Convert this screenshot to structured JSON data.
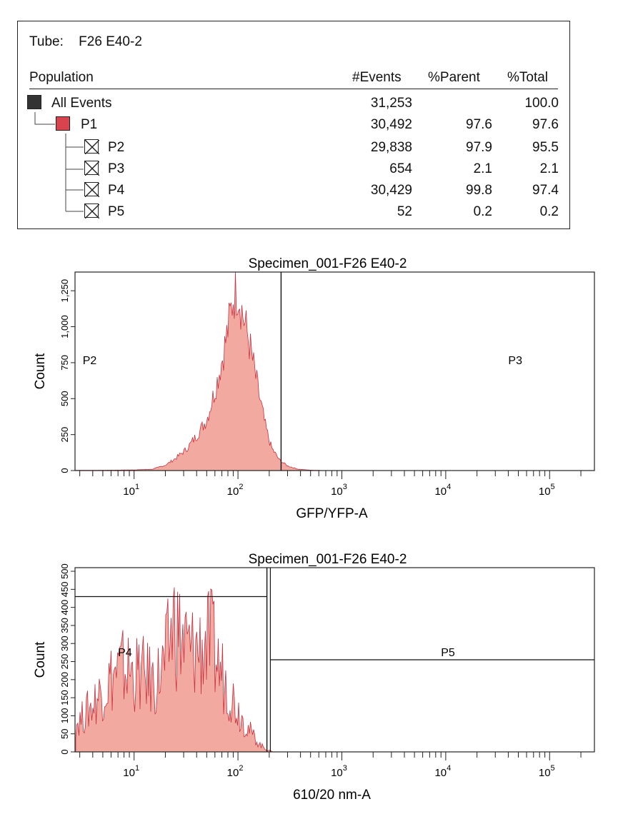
{
  "tube": {
    "label": "Tube:",
    "name": "F26 E40-2"
  },
  "table": {
    "headers": {
      "population": "Population",
      "events": "#Events",
      "parent": "%Parent",
      "total": "%Total"
    },
    "rows": [
      {
        "name": "All Events",
        "events": "31,253",
        "parent": "",
        "total": "100.0",
        "swatch": "black",
        "level": 0
      },
      {
        "name": "P1",
        "events": "30,492",
        "parent": "97.6",
        "total": "97.6",
        "swatch": "red",
        "level": 1
      },
      {
        "name": "P2",
        "events": "29,838",
        "parent": "97.9",
        "total": "95.5",
        "swatch": "x",
        "level": 2
      },
      {
        "name": "P3",
        "events": "654",
        "parent": "2.1",
        "total": "2.1",
        "swatch": "x",
        "level": 2
      },
      {
        "name": "P4",
        "events": "30,429",
        "parent": "99.8",
        "total": "97.4",
        "swatch": "x",
        "level": 2
      },
      {
        "name": "P5",
        "events": "52",
        "parent": "0.2",
        "total": "0.2",
        "swatch": "x",
        "level": 2
      }
    ]
  },
  "colors": {
    "fill": "#f2aaa0",
    "stroke": "#c8303f",
    "swatch_red": "#d9434e"
  },
  "chart_data": [
    {
      "type": "area",
      "title": "Specimen_001-F26 E40-2",
      "xlabel": "GFP/YFP-A",
      "ylabel": "Count",
      "x_scale": "log",
      "xlim": [
        2.7,
        270000
      ],
      "ylim": [
        0,
        1380
      ],
      "y_ticks": [
        "0",
        "250",
        "500",
        "750",
        "1,000",
        "1,250"
      ],
      "y_tick_values": [
        0,
        250,
        500,
        750,
        1000,
        1250
      ],
      "x_ticks": [
        {
          "base": "10",
          "exp": "1",
          "value": 10
        },
        {
          "base": "10",
          "exp": "2",
          "value": 100
        },
        {
          "base": "10",
          "exp": "3",
          "value": 1000
        },
        {
          "base": "10",
          "exp": "4",
          "value": 10000
        },
        {
          "base": "10",
          "exp": "5",
          "value": 100000
        }
      ],
      "gates": [
        {
          "name": "P2",
          "range": [
            2.7,
            260
          ],
          "label_x": 3.2,
          "label_y": 740
        },
        {
          "name": "P3",
          "range": [
            260,
            270000
          ],
          "label_x": 40000,
          "label_y": 740
        }
      ],
      "gate_divider_x": 260,
      "peaks": [
        {
          "x": 10,
          "y": 5
        },
        {
          "x": 15,
          "y": 10
        },
        {
          "x": 20,
          "y": 40
        },
        {
          "x": 25,
          "y": 90
        },
        {
          "x": 32,
          "y": 160
        },
        {
          "x": 40,
          "y": 260
        },
        {
          "x": 50,
          "y": 380
        },
        {
          "x": 60,
          "y": 600
        },
        {
          "x": 70,
          "y": 820
        },
        {
          "x": 80,
          "y": 1050
        },
        {
          "x": 90,
          "y": 1300
        },
        {
          "x": 100,
          "y": 1360
        },
        {
          "x": 110,
          "y": 1180
        },
        {
          "x": 125,
          "y": 1000
        },
        {
          "x": 140,
          "y": 800
        },
        {
          "x": 160,
          "y": 560
        },
        {
          "x": 185,
          "y": 320
        },
        {
          "x": 210,
          "y": 170
        },
        {
          "x": 250,
          "y": 80
        },
        {
          "x": 300,
          "y": 35
        },
        {
          "x": 380,
          "y": 10
        },
        {
          "x": 500,
          "y": 3
        },
        {
          "x": 700,
          "y": 0
        }
      ]
    },
    {
      "type": "area",
      "title": "Specimen_001-F26 E40-2",
      "xlabel": "610/20 nm-A",
      "ylabel": "Count",
      "x_scale": "log",
      "xlim": [
        2.7,
        270000
      ],
      "ylim": [
        0,
        510
      ],
      "y_ticks": [
        "0",
        "50",
        "100",
        "150",
        "200",
        "250",
        "300",
        "350",
        "400",
        "450",
        "500"
      ],
      "y_tick_values": [
        0,
        50,
        100,
        150,
        200,
        250,
        300,
        350,
        400,
        450,
        500
      ],
      "x_ticks": [
        {
          "base": "10",
          "exp": "1",
          "value": 10
        },
        {
          "base": "10",
          "exp": "2",
          "value": 100
        },
        {
          "base": "10",
          "exp": "3",
          "value": 1000
        },
        {
          "base": "10",
          "exp": "4",
          "value": 10000
        },
        {
          "base": "10",
          "exp": "5",
          "value": 100000
        }
      ],
      "gates": [
        {
          "name": "P4",
          "range": [
            2.7,
            190
          ],
          "level": 430,
          "label_x": 7,
          "label_y": 265
        },
        {
          "name": "P5",
          "range": [
            205,
            270000
          ],
          "level": 255,
          "label_x": 9000,
          "label_y": 265
        }
      ],
      "gate_divider_x": 190,
      "peaks": [
        {
          "x": 3,
          "y": 120
        },
        {
          "x": 4,
          "y": 180
        },
        {
          "x": 5,
          "y": 240
        },
        {
          "x": 6.5,
          "y": 300
        },
        {
          "x": 8,
          "y": 320
        },
        {
          "x": 10,
          "y": 300
        },
        {
          "x": 13,
          "y": 290
        },
        {
          "x": 16,
          "y": 260
        },
        {
          "x": 20,
          "y": 340
        },
        {
          "x": 24,
          "y": 500
        },
        {
          "x": 28,
          "y": 430
        },
        {
          "x": 35,
          "y": 380
        },
        {
          "x": 45,
          "y": 400
        },
        {
          "x": 55,
          "y": 420
        },
        {
          "x": 65,
          "y": 330
        },
        {
          "x": 80,
          "y": 250
        },
        {
          "x": 100,
          "y": 160
        },
        {
          "x": 130,
          "y": 80
        },
        {
          "x": 160,
          "y": 30
        },
        {
          "x": 190,
          "y": 8
        },
        {
          "x": 220,
          "y": 0
        }
      ]
    }
  ]
}
